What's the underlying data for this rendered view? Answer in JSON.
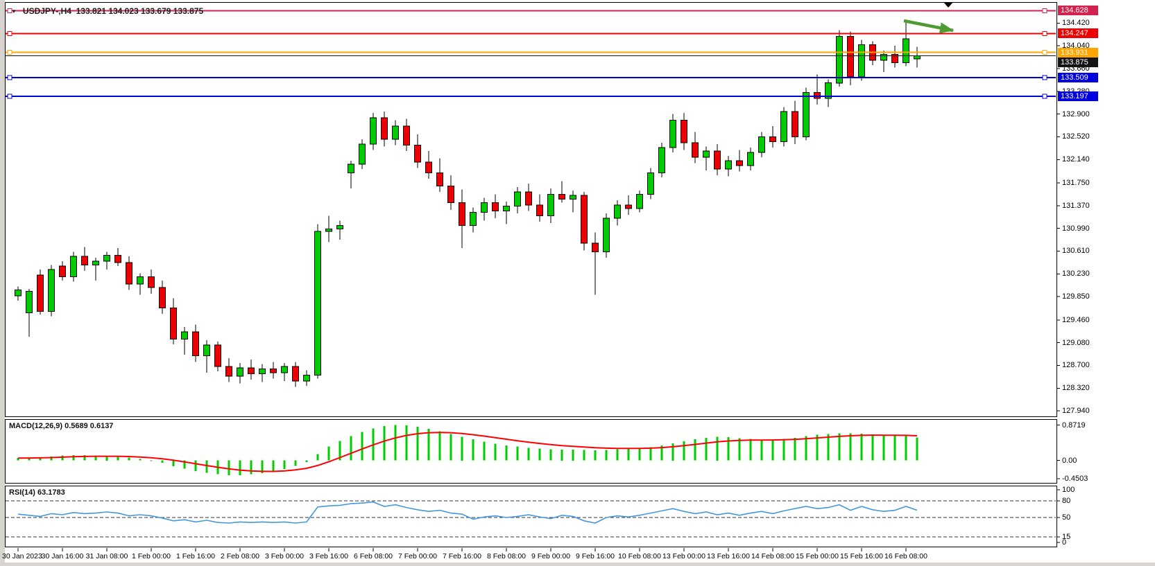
{
  "title": {
    "text": "USDJPY-,H4  133.821 134.023 133.679 133.875",
    "symbol": "USDJPY-",
    "timeframe": "H4",
    "open": "133.821",
    "high": "134.023",
    "low": "133.679",
    "close": "133.875",
    "dropdown_glyph": "▼"
  },
  "indicators": {
    "macd": {
      "text": "MACD(12,26,9) 0.5689 0.6137",
      "name": "MACD(12,26,9)",
      "macd_value": "0.5689",
      "signal_value": "0.6137",
      "axis_ticks": [
        "0.8719",
        "0.00",
        "-0.4503"
      ]
    },
    "rsi": {
      "text": "RSI(14) 63.1783",
      "name": "RSI(14)",
      "value": "63.1783",
      "axis_ticks": [
        "100",
        "80",
        "50",
        "15",
        "0"
      ],
      "levels": [
        80,
        50,
        15
      ]
    }
  },
  "price_axis": {
    "ticks": [
      "134.420",
      "134.040",
      "133.660",
      "133.280",
      "132.900",
      "132.520",
      "132.140",
      "131.750",
      "131.370",
      "130.990",
      "130.610",
      "130.230",
      "129.850",
      "129.460",
      "129.080",
      "128.700",
      "128.320",
      "127.940"
    ]
  },
  "hlines": [
    {
      "label": "134.628",
      "value": 134.628,
      "color": "#D2234F",
      "type": "resistance"
    },
    {
      "label": "134.247",
      "value": 134.247,
      "color": "#EE0000",
      "type": "resistance"
    },
    {
      "label": "133.931",
      "value": 133.931,
      "color": "#FFA500",
      "type": "level"
    },
    {
      "label": "133.875",
      "value": 133.875,
      "color": "#141414",
      "type": "current-price"
    },
    {
      "label": "133.509",
      "value": 133.509,
      "color": "#0000DE",
      "type": "support"
    },
    {
      "label": "133.197",
      "value": 133.197,
      "color": "#0000DE",
      "type": "support"
    }
  ],
  "annotations": {
    "arrow": {
      "color": "#4F9B32",
      "direction": "right-down"
    },
    "object_marker_glyph": "▼"
  },
  "chart_data": [
    {
      "type": "candlestick",
      "title": "USDJPY- H4",
      "ylim": [
        127.86,
        134.76
      ],
      "up_color": "#00CC00",
      "down_color": "#EE0000",
      "bars_per_x_tick": 4,
      "x_tick_labels": [
        "30 Jan 2023",
        "30 Jan 16:00",
        "31 Jan 08:00",
        "1 Feb 00:00",
        "1 Feb 16:00",
        "2 Feb 08:00",
        "3 Feb 00:00",
        "3 Feb 16:00",
        "6 Feb 08:00",
        "7 Feb 00:00",
        "7 Feb 16:00",
        "8 Feb 08:00",
        "9 Feb 00:00",
        "9 Feb 16:00",
        "10 Feb 08:00",
        "13 Feb 00:00",
        "13 Feb 16:00",
        "14 Feb 08:00",
        "15 Feb 00:00",
        "15 Feb 16:00",
        "16 Feb 08:00"
      ],
      "ohlc": [
        [
          129.86,
          130.02,
          129.78,
          129.96
        ],
        [
          129.58,
          129.98,
          129.18,
          129.94
        ],
        [
          130.21,
          130.3,
          129.55,
          129.6
        ],
        [
          129.6,
          130.38,
          129.52,
          130.3
        ],
        [
          130.36,
          130.44,
          130.12,
          130.18
        ],
        [
          130.18,
          130.6,
          130.1,
          130.52
        ],
        [
          130.52,
          130.68,
          130.28,
          130.38
        ],
        [
          130.38,
          130.5,
          130.12,
          130.44
        ],
        [
          130.44,
          130.6,
          130.3,
          130.54
        ],
        [
          130.54,
          130.66,
          130.36,
          130.42
        ],
        [
          130.42,
          130.52,
          129.96,
          130.06
        ],
        [
          130.06,
          130.24,
          129.88,
          130.18
        ],
        [
          130.18,
          130.3,
          129.9,
          130.0
        ],
        [
          130.0,
          130.12,
          129.56,
          129.66
        ],
        [
          129.66,
          129.82,
          129.05,
          129.14
        ],
        [
          129.14,
          129.34,
          128.88,
          129.26
        ],
        [
          129.26,
          129.38,
          128.76,
          128.86
        ],
        [
          128.86,
          129.12,
          128.58,
          129.04
        ],
        [
          129.04,
          129.1,
          128.6,
          128.68
        ],
        [
          128.68,
          128.82,
          128.42,
          128.52
        ],
        [
          128.52,
          128.74,
          128.4,
          128.66
        ],
        [
          128.66,
          128.8,
          128.46,
          128.56
        ],
        [
          128.56,
          128.72,
          128.42,
          128.64
        ],
        [
          128.64,
          128.76,
          128.48,
          128.58
        ],
        [
          128.58,
          128.74,
          128.44,
          128.68
        ],
        [
          128.68,
          128.76,
          128.34,
          128.44
        ],
        [
          128.44,
          128.62,
          128.36,
          128.54
        ],
        [
          128.54,
          131.06,
          128.48,
          130.94
        ],
        [
          130.94,
          131.2,
          130.76,
          130.98
        ],
        [
          130.98,
          131.12,
          130.8,
          131.04
        ],
        [
          131.92,
          132.12,
          131.66,
          132.06
        ],
        [
          132.06,
          132.48,
          131.98,
          132.4
        ],
        [
          132.4,
          132.92,
          132.3,
          132.84
        ],
        [
          132.84,
          132.94,
          132.36,
          132.48
        ],
        [
          132.48,
          132.8,
          132.38,
          132.7
        ],
        [
          132.7,
          132.82,
          132.28,
          132.38
        ],
        [
          132.38,
          132.56,
          132.0,
          132.1
        ],
        [
          132.1,
          132.28,
          131.82,
          131.92
        ],
        [
          131.92,
          132.16,
          131.6,
          131.7
        ],
        [
          131.7,
          131.88,
          131.3,
          131.42
        ],
        [
          131.42,
          131.64,
          130.66,
          131.04
        ],
        [
          131.04,
          131.34,
          130.92,
          131.26
        ],
        [
          131.26,
          131.5,
          131.12,
          131.42
        ],
        [
          131.42,
          131.56,
          131.16,
          131.28
        ],
        [
          131.28,
          131.44,
          131.06,
          131.36
        ],
        [
          131.36,
          131.68,
          131.24,
          131.6
        ],
        [
          131.6,
          131.74,
          131.28,
          131.38
        ],
        [
          131.38,
          131.56,
          131.1,
          131.2
        ],
        [
          131.2,
          131.66,
          131.08,
          131.56
        ],
        [
          131.56,
          131.78,
          131.42,
          131.48
        ],
        [
          131.48,
          131.62,
          131.26,
          131.54
        ],
        [
          131.54,
          131.6,
          130.62,
          130.74
        ],
        [
          130.74,
          130.92,
          129.88,
          130.6
        ],
        [
          130.6,
          131.24,
          130.5,
          131.16
        ],
        [
          131.16,
          131.46,
          131.04,
          131.38
        ],
        [
          131.38,
          131.54,
          131.22,
          131.32
        ],
        [
          131.32,
          131.62,
          131.26,
          131.56
        ],
        [
          131.56,
          132.0,
          131.48,
          131.92
        ],
        [
          131.92,
          132.42,
          131.84,
          132.34
        ],
        [
          132.34,
          132.9,
          132.26,
          132.8
        ],
        [
          132.8,
          132.92,
          132.3,
          132.42
        ],
        [
          132.42,
          132.6,
          132.08,
          132.18
        ],
        [
          132.18,
          132.36,
          131.96,
          132.28
        ],
        [
          132.28,
          132.4,
          131.88,
          131.98
        ],
        [
          131.98,
          132.2,
          131.86,
          132.12
        ],
        [
          132.12,
          132.3,
          131.94,
          132.04
        ],
        [
          132.04,
          132.34,
          131.96,
          132.26
        ],
        [
          132.26,
          132.6,
          132.18,
          132.52
        ],
        [
          132.52,
          132.7,
          132.34,
          132.44
        ],
        [
          132.44,
          133.02,
          132.36,
          132.94
        ],
        [
          132.94,
          133.12,
          132.4,
          132.52
        ],
        [
          132.52,
          133.34,
          132.46,
          133.26
        ],
        [
          133.26,
          133.56,
          133.06,
          133.16
        ],
        [
          133.16,
          133.48,
          133.02,
          133.42
        ],
        [
          133.42,
          134.3,
          133.36,
          134.2
        ],
        [
          134.2,
          134.28,
          133.38,
          133.52
        ],
        [
          133.52,
          134.14,
          133.46,
          134.06
        ],
        [
          134.06,
          134.12,
          133.72,
          133.8
        ],
        [
          133.8,
          133.96,
          133.6,
          133.9
        ],
        [
          133.9,
          134.04,
          133.68,
          133.76
        ],
        [
          133.76,
          134.45,
          133.7,
          134.16
        ],
        [
          133.821,
          134.023,
          133.679,
          133.875
        ]
      ]
    },
    {
      "type": "bar",
      "title": "MACD(12,26,9)",
      "ylim": [
        -0.55,
        1.0
      ],
      "color": "#00CC00",
      "signal_color": "#FF0000",
      "signal_period": 9,
      "current": "0.5689",
      "signal_current": "0.6137",
      "values": [
        0.06,
        0.07,
        0.08,
        0.1,
        0.12,
        0.13,
        0.13,
        0.12,
        0.11,
        0.1,
        0.07,
        0.04,
        0.0,
        -0.06,
        -0.14,
        -0.2,
        -0.26,
        -0.3,
        -0.34,
        -0.36,
        -0.36,
        -0.34,
        -0.31,
        -0.27,
        -0.21,
        -0.13,
        -0.04,
        0.16,
        0.34,
        0.48,
        0.6,
        0.7,
        0.79,
        0.85,
        0.87,
        0.86,
        0.83,
        0.78,
        0.72,
        0.65,
        0.58,
        0.52,
        0.46,
        0.41,
        0.37,
        0.34,
        0.31,
        0.29,
        0.28,
        0.27,
        0.27,
        0.26,
        0.25,
        0.26,
        0.28,
        0.29,
        0.3,
        0.33,
        0.37,
        0.42,
        0.47,
        0.52,
        0.56,
        0.58,
        0.57,
        0.55,
        0.53,
        0.51,
        0.51,
        0.53,
        0.56,
        0.6,
        0.63,
        0.65,
        0.67,
        0.67,
        0.66,
        0.64,
        0.62,
        0.61,
        0.61,
        0.5689
      ]
    },
    {
      "type": "line",
      "title": "RSI(14)",
      "ylim": [
        0,
        100
      ],
      "color": "#4298DF",
      "levels": [
        80,
        50,
        15
      ],
      "current": "63.1783",
      "values": [
        56,
        54,
        52,
        57,
        55,
        59,
        57,
        58,
        60,
        58,
        53,
        55,
        53,
        49,
        44,
        46,
        42,
        45,
        41,
        40,
        42,
        41,
        42,
        41,
        42,
        40,
        42,
        69,
        71,
        72,
        75,
        76,
        78,
        70,
        73,
        68,
        64,
        61,
        63,
        58,
        56,
        47,
        51,
        53,
        50,
        52,
        55,
        51,
        48,
        54,
        52,
        44,
        40,
        50,
        53,
        51,
        54,
        58,
        62,
        66,
        61,
        57,
        60,
        55,
        58,
        54,
        58,
        61,
        57,
        62,
        66,
        70,
        66,
        68,
        73,
        63,
        70,
        64,
        61,
        63,
        70,
        63.18
      ]
    }
  ]
}
